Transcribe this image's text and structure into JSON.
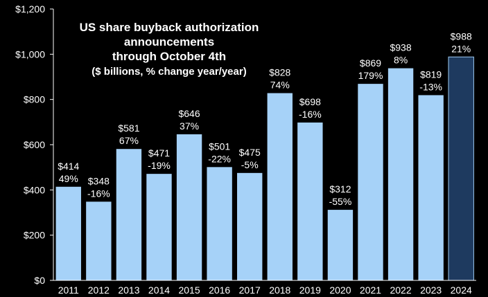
{
  "chart_data": {
    "type": "bar",
    "title_lines": [
      "US share buyback authorization",
      "announcements",
      "through October 4th"
    ],
    "subtitle": "($ billions, % change year/year)",
    "categories": [
      "2011",
      "2012",
      "2013",
      "2014",
      "2015",
      "2016",
      "2017",
      "2018",
      "2019",
      "2020",
      "2021",
      "2022",
      "2023",
      "2024"
    ],
    "values": [
      414,
      348,
      581,
      471,
      646,
      501,
      475,
      828,
      698,
      312,
      869,
      938,
      819,
      988
    ],
    "value_labels": [
      "$414",
      "$348",
      "$581",
      "$471",
      "$646",
      "$501",
      "$475",
      "$828",
      "$698",
      "$312",
      "$869",
      "$938",
      "$819",
      "$988"
    ],
    "pct_labels": [
      "49%",
      "-16%",
      "67%",
      "-19%",
      "37%",
      "-22%",
      "-5%",
      "74%",
      "-16%",
      "-55%",
      "179%",
      "8%",
      "-13%",
      "21%"
    ],
    "highlight_index": 13,
    "yticks": [
      "$0",
      "$200",
      "$400",
      "$600",
      "$800",
      "$1,000",
      "$1,200"
    ],
    "ylim": [
      0,
      1200
    ],
    "colors": {
      "bar": "#a6d2f8",
      "highlight": "#1e3a5f",
      "highlight_edge": "#9ecbf2",
      "axis": "#ffffff",
      "background": "#000000"
    },
    "grid": false
  }
}
